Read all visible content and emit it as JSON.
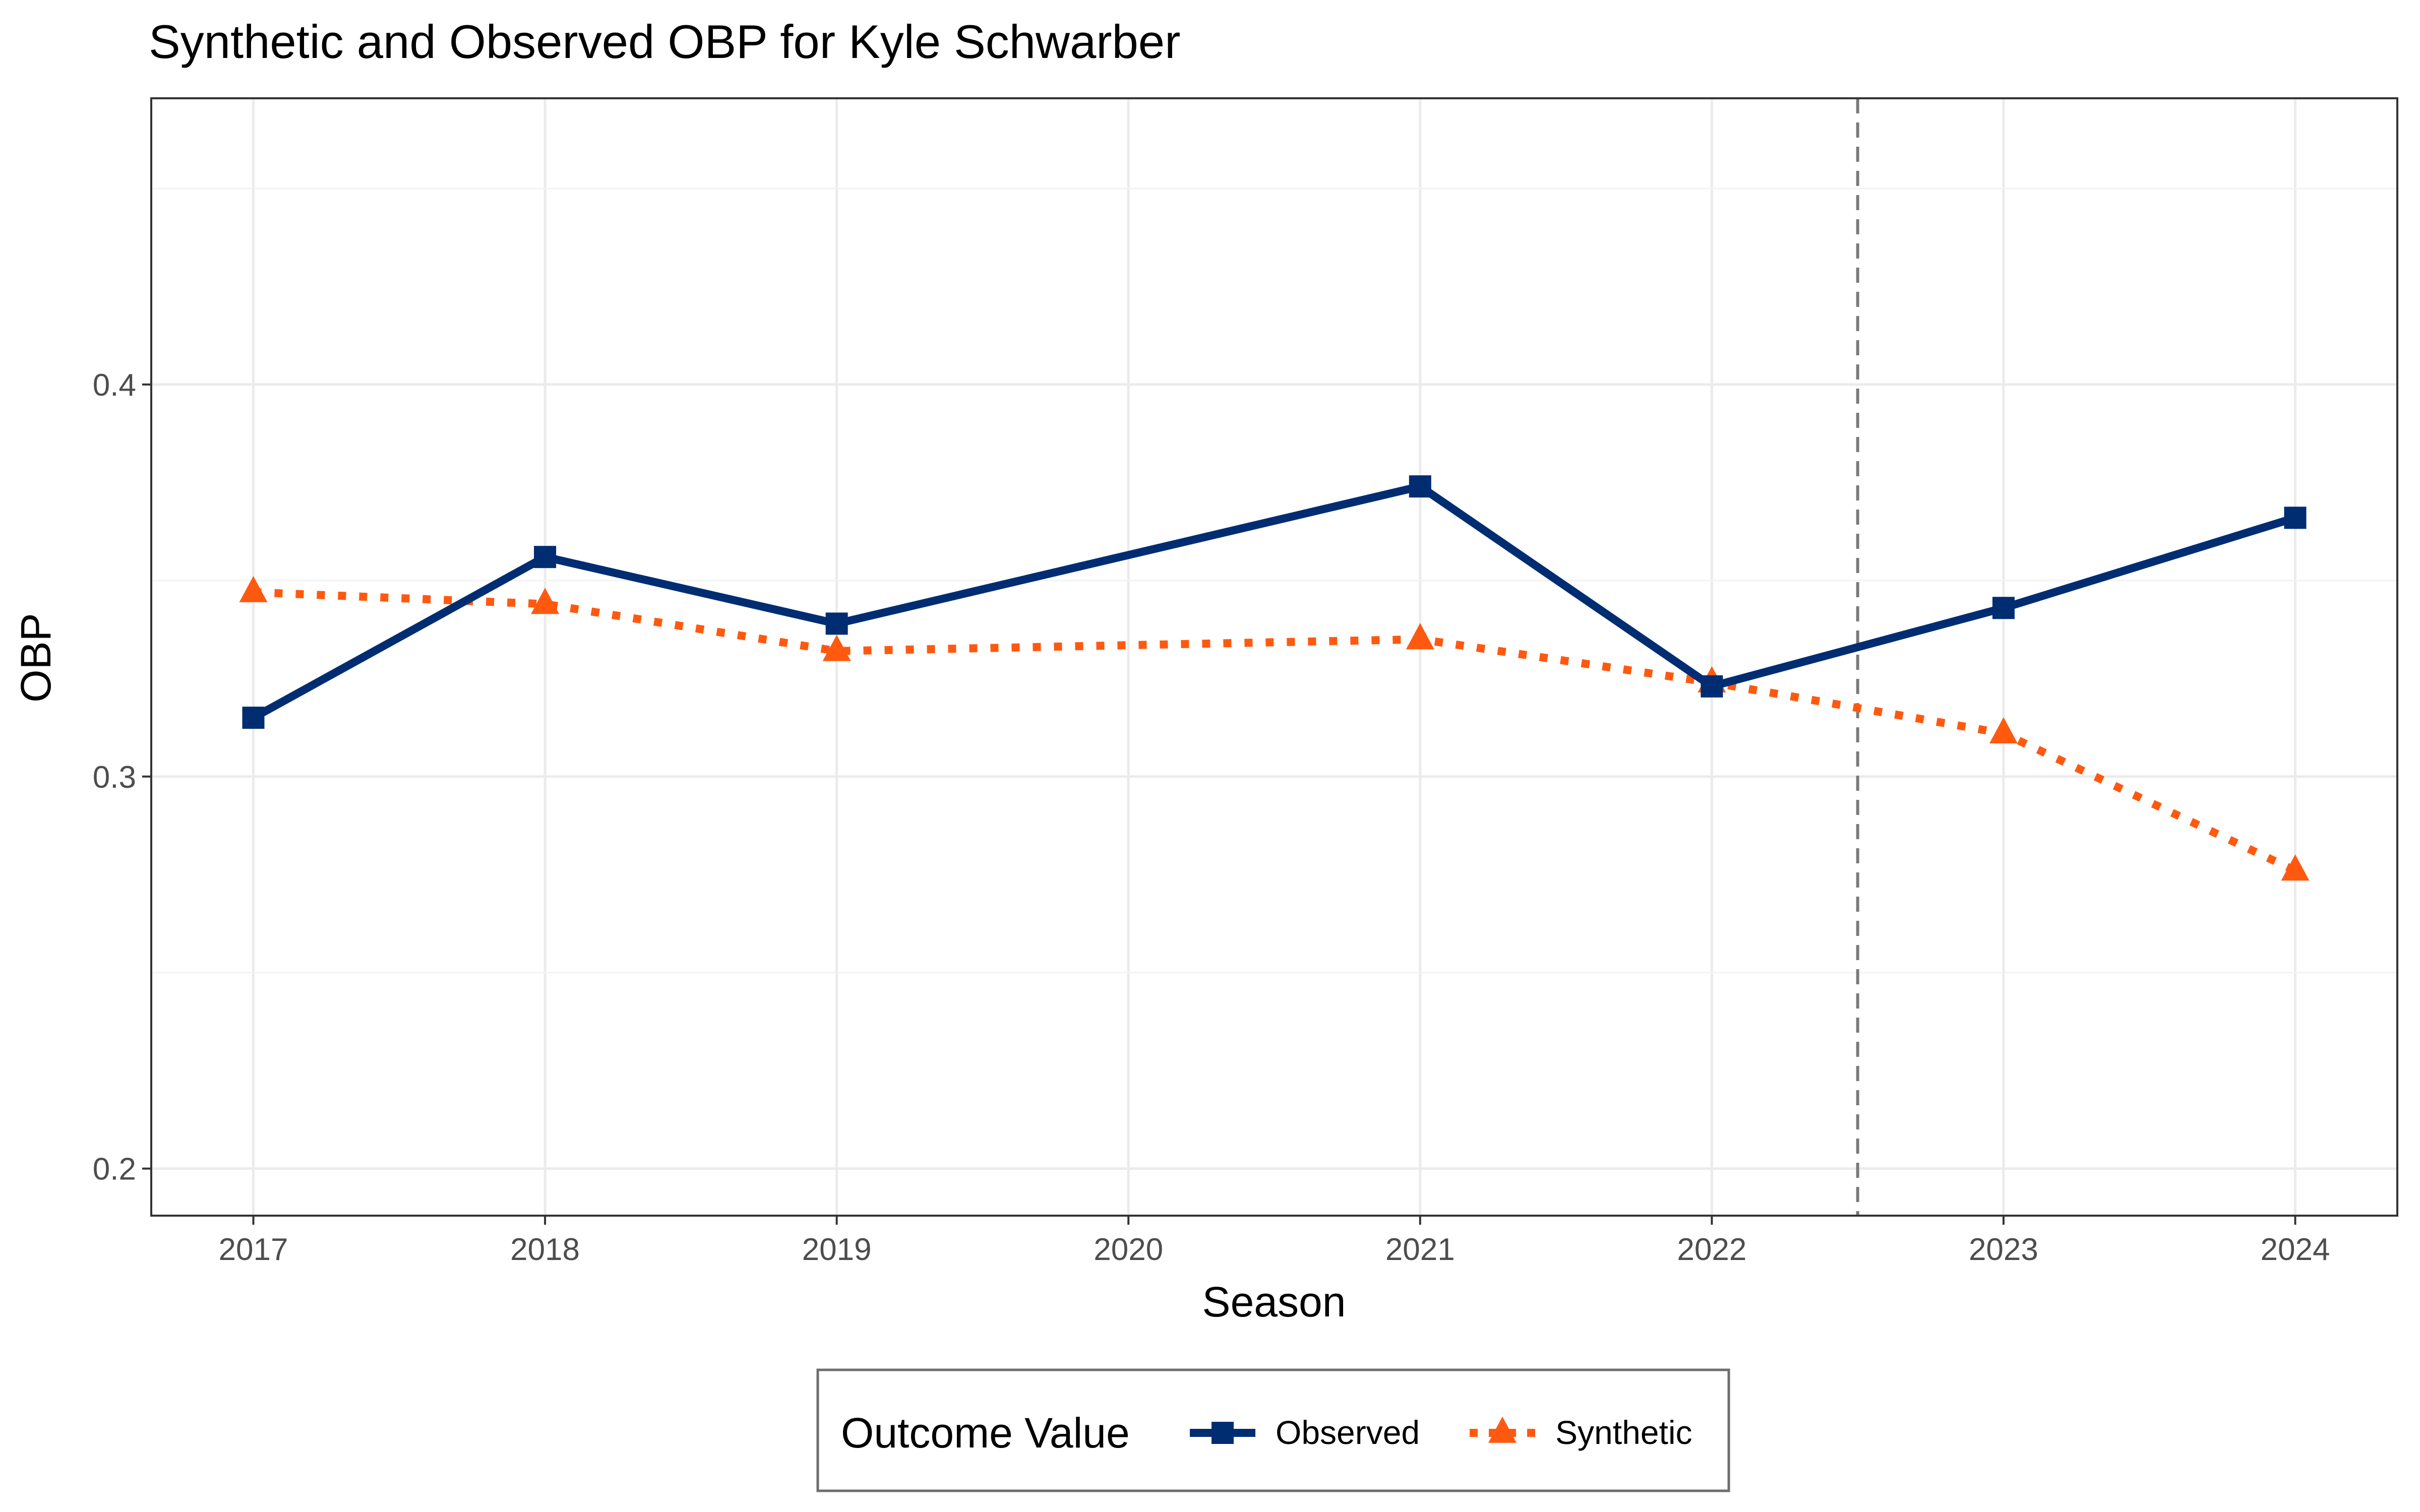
{
  "chart_data": {
    "type": "line",
    "title": "Synthetic and Observed OBP for Kyle Schwarber",
    "xlabel": "Season",
    "ylabel": "OBP",
    "x_ticks": [
      "2017",
      "2018",
      "2019",
      "2020",
      "2021",
      "2022",
      "2023",
      "2024"
    ],
    "y_ticks": [
      "0.2",
      "0.3",
      "0.4"
    ],
    "xlim": [
      2016.65,
      2024.35
    ],
    "ylim": [
      0.188,
      0.473
    ],
    "grid": true,
    "treatment_line_x": 2022.5,
    "legend": {
      "title": "Outcome Value",
      "position": "bottom"
    },
    "series": [
      {
        "name": "Observed",
        "color": "#002D72",
        "linestyle": "solid",
        "marker": "square",
        "x": [
          2017,
          2018,
          2019,
          2021,
          2022,
          2023,
          2024
        ],
        "y": [
          0.315,
          0.356,
          0.339,
          0.374,
          0.323,
          0.343,
          0.366
        ]
      },
      {
        "name": "Synthetic",
        "color": "#FF5910",
        "linestyle": "dotted",
        "marker": "triangle",
        "x": [
          2017,
          2018,
          2019,
          2021,
          2022,
          2023,
          2024
        ],
        "y": [
          0.347,
          0.344,
          0.332,
          0.335,
          0.324,
          0.311,
          0.276
        ]
      }
    ]
  }
}
